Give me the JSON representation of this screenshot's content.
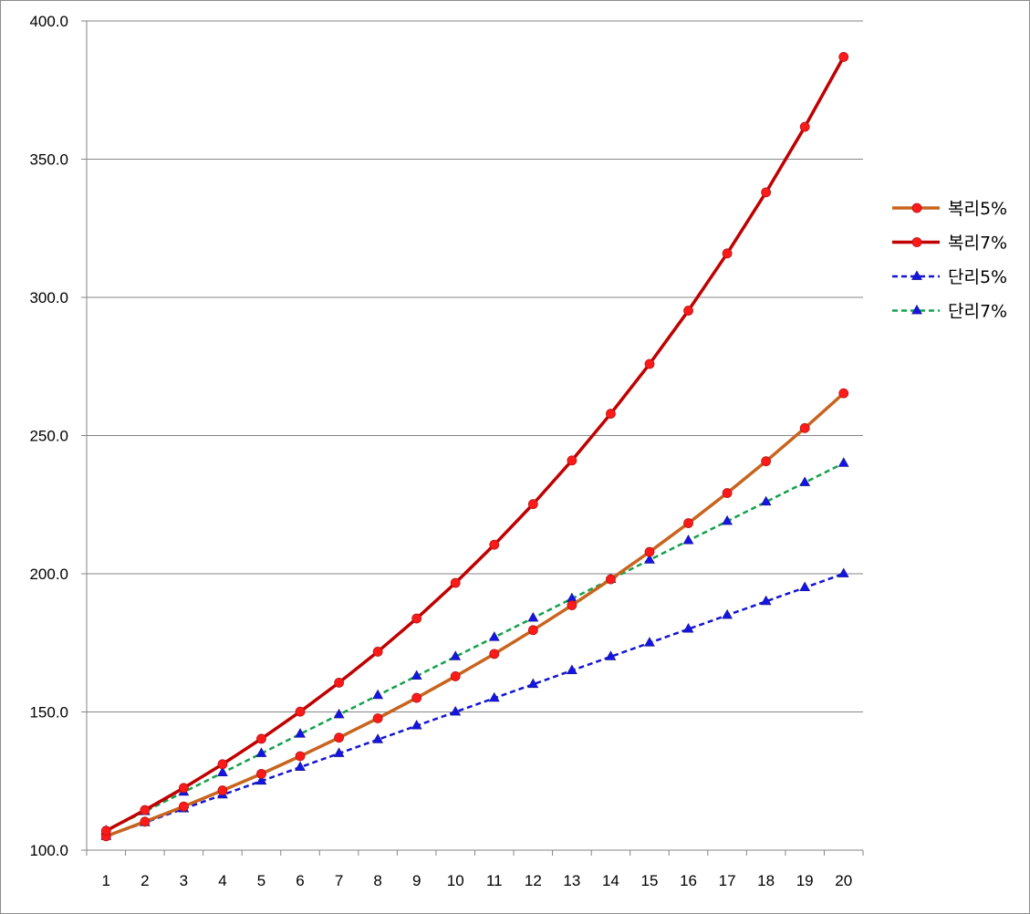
{
  "chart_data": {
    "type": "line",
    "x": [
      1,
      2,
      3,
      4,
      5,
      6,
      7,
      8,
      9,
      10,
      11,
      12,
      13,
      14,
      15,
      16,
      17,
      18,
      19,
      20
    ],
    "ylim": [
      100,
      400
    ],
    "yticks": [
      "100.0",
      "150.0",
      "200.0",
      "250.0",
      "300.0",
      "350.0",
      "400.0"
    ],
    "ytick_values": [
      100,
      150,
      200,
      250,
      300,
      350,
      400
    ],
    "grid": true,
    "legend_position": "right",
    "series": [
      {
        "name": "복리5%",
        "color": "#c8641e",
        "marker_color": "#ff1a1a",
        "marker": "circle",
        "dashed": false,
        "values": [
          105.0,
          110.3,
          115.8,
          121.6,
          127.6,
          134.0,
          140.7,
          147.7,
          155.1,
          162.9,
          171.0,
          179.6,
          188.6,
          198.0,
          207.9,
          218.3,
          229.2,
          240.7,
          252.7,
          265.3
        ]
      },
      {
        "name": "복리7%",
        "color": "#c00000",
        "marker_color": "#ff1a1a",
        "marker": "circle",
        "dashed": false,
        "values": [
          107.0,
          114.5,
          122.5,
          131.1,
          140.3,
          150.1,
          160.6,
          171.8,
          183.8,
          196.7,
          210.5,
          225.2,
          241.0,
          257.9,
          275.9,
          295.2,
          315.9,
          338.0,
          361.7,
          387.0
        ]
      },
      {
        "name": "단리5%",
        "color": "#1414d2",
        "marker_color": "#1414e6",
        "marker": "triangle",
        "dashed": true,
        "values": [
          105,
          110,
          115,
          120,
          125,
          130,
          135,
          140,
          145,
          150,
          155,
          160,
          165,
          170,
          175,
          180,
          185,
          190,
          195,
          200
        ]
      },
      {
        "name": "단리7%",
        "color": "#14a04b",
        "marker_color": "#1414e6",
        "marker": "triangle",
        "dashed": true,
        "values": [
          107,
          114,
          121,
          128,
          135,
          142,
          149,
          156,
          163,
          170,
          177,
          184,
          191,
          198,
          205,
          212,
          219,
          226,
          233,
          240
        ]
      }
    ]
  }
}
